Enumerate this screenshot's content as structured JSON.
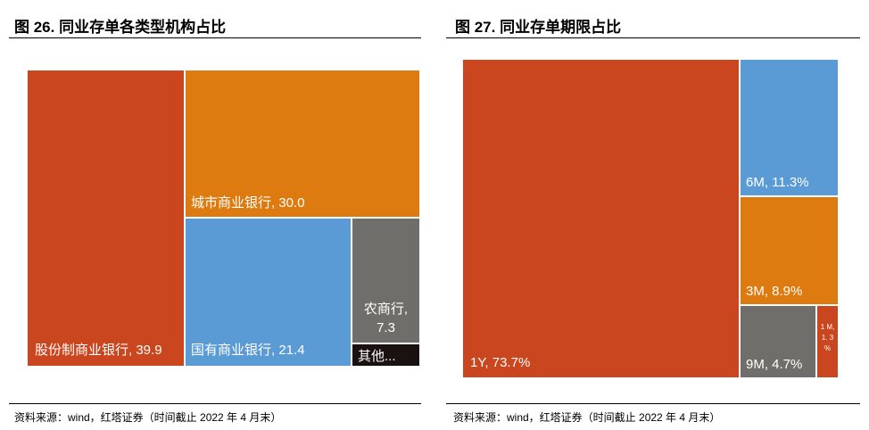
{
  "left": {
    "title": "图 26. 同业存单各类型机构占比",
    "source": "资料来源：wind，红塔证券（时间截止 2022 年 4 月末）",
    "chart_data": {
      "type": "treemap",
      "title": "同业存单各类型机构占比",
      "categories": [
        "股份制商业银行",
        "城市商业银行",
        "国有商业银行",
        "农商行",
        "其他"
      ],
      "values": [
        39.9,
        30.0,
        21.4,
        7.3,
        1.4
      ],
      "labels": [
        "股份制商业银行, 39.9",
        "城市商业银行, 30.0",
        "国有商业银行, 21.4",
        "农商行,",
        "7.3",
        "其他..."
      ]
    }
  },
  "right": {
    "title": "图 27. 同业存单期限占比",
    "source": "资料来源：wind，红塔证券（时间截止 2022 年 4 月末）",
    "chart_data": {
      "type": "treemap",
      "title": "同业存单期限占比",
      "categories": [
        "1Y",
        "6M",
        "3M",
        "9M",
        "1M"
      ],
      "values": [
        73.7,
        11.3,
        8.9,
        4.7,
        1.3
      ],
      "labels": [
        "1Y, 73.7%",
        "6M, 11.3%",
        "3M, 8.9%",
        "9M, 4.7%",
        "1 M, 1. 3 %"
      ]
    }
  },
  "colors": {
    "red": "#c9461e",
    "orange": "#de7b10",
    "blue": "#5b9bd5",
    "gray": "#6f6e6a",
    "black": "#1a1210"
  }
}
